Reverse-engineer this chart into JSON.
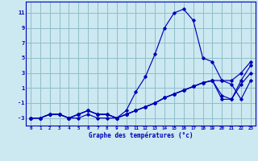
{
  "xlabel": "Graphe des températures (°c)",
  "background_color": "#cce8f0",
  "grid_color": "#90bec8",
  "line_color": "#0000bb",
  "hours": [
    0,
    1,
    2,
    3,
    4,
    5,
    6,
    7,
    8,
    9,
    10,
    11,
    12,
    13,
    14,
    15,
    16,
    17,
    18,
    19,
    20,
    21,
    22,
    23
  ],
  "curve1": [
    -3,
    -3,
    -2.5,
    -2.5,
    -3,
    -3,
    -2.5,
    -3,
    -3,
    -3,
    -2,
    0.5,
    2.5,
    5.5,
    9,
    11,
    11.5,
    10,
    5,
    4.5,
    2,
    1.5,
    -0.5,
    2
  ],
  "curve2": [
    -3,
    -3,
    -2.5,
    -2.5,
    -3,
    -2.5,
    -2,
    -2.5,
    -2.5,
    -3,
    -2.5,
    -2,
    -1.5,
    -1,
    -0.3,
    0.2,
    0.7,
    1.2,
    1.7,
    2,
    2.0,
    2.0,
    3.0,
    4.5
  ],
  "curve3": [
    -3,
    -3,
    -2.5,
    -2.5,
    -3,
    -2.5,
    -2,
    -2.5,
    -2.5,
    -3,
    -2.5,
    -2,
    -1.5,
    -1,
    -0.3,
    0.2,
    0.7,
    1.2,
    1.7,
    2,
    0.0,
    -0.5,
    1.5,
    3.0
  ],
  "curve4": [
    -3,
    -3,
    -2.5,
    -2.5,
    -3,
    -2.5,
    -2,
    -2.5,
    -2.5,
    -3,
    -2.5,
    -2,
    -1.5,
    -1,
    -0.3,
    0.2,
    0.7,
    1.2,
    1.7,
    2,
    -0.5,
    -0.5,
    2.0,
    4.0
  ],
  "ylim": [
    -4,
    12.5
  ],
  "yticks": [
    -3,
    -1,
    1,
    3,
    5,
    7,
    9,
    11
  ],
  "dpi": 100
}
